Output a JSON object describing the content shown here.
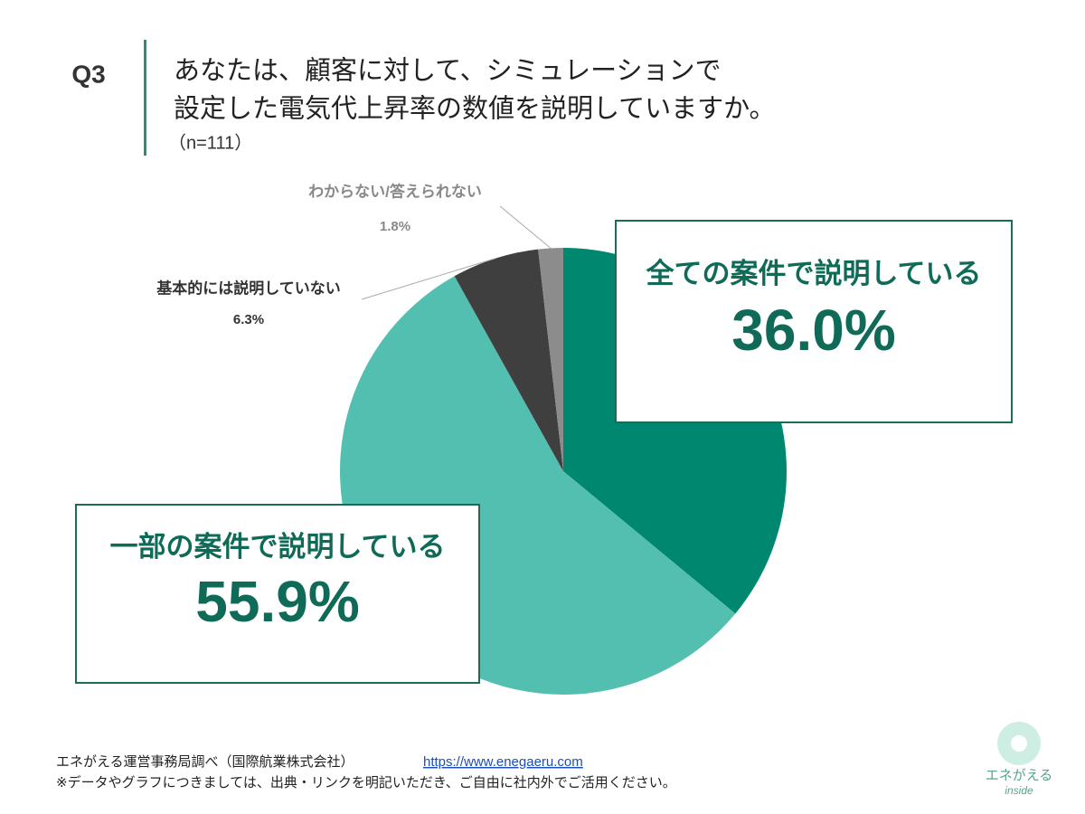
{
  "question_number": "Q3",
  "chart_data": {
    "type": "pie",
    "title": [
      "あなたは、顧客に対して、シミュレーションで",
      "設定した電気代上昇率の数値を説明していますか。"
    ],
    "subtitle": "（n=111）",
    "categories": [
      "全ての案件で説明している",
      "一部の案件で説明している",
      "基本的には説明していない",
      "わからない/答えられない"
    ],
    "values": [
      36.0,
      55.9,
      6.3,
      1.8
    ],
    "value_labels": [
      "36.0%",
      "55.9%",
      "6.3%",
      "1.8%"
    ],
    "colors": [
      "#00876f",
      "#52bfb0",
      "#3f3f3f",
      "#8c8c8c"
    ]
  },
  "footer": {
    "source": "エネがえる運営事務局調べ（国際航業株式会社）",
    "url": "https://www.enegaeru.com",
    "note": "※データやグラフにつきましては、出典・リンクを明記いただき、ご自由に社内外でご活用ください。"
  },
  "logo": {
    "name": "エネがえる",
    "tag": "inside"
  }
}
